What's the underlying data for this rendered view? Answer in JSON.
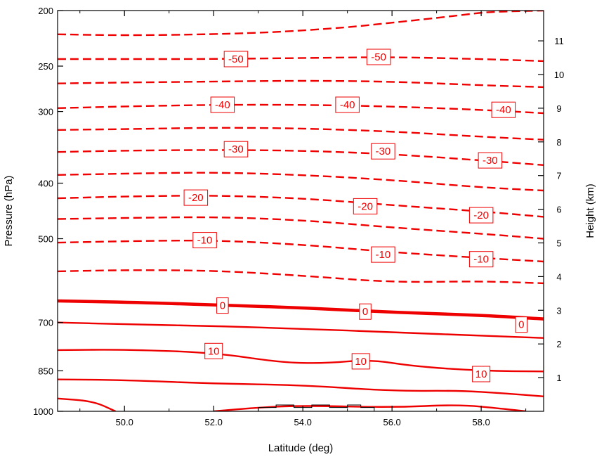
{
  "chart_data": {
    "type": "line",
    "subtype": "contour",
    "xlabel": "Latitude (deg)",
    "ylabel": "Pressure (hPa)",
    "ylabel_right": "Height (km)",
    "xlim": [
      48.5,
      59.4
    ],
    "ylim": [
      1000,
      200
    ],
    "y_scale": "log",
    "x_ticks": [
      "50.0",
      "52.0",
      "54.0",
      "56.0",
      "58.0"
    ],
    "x_tick_values": [
      50,
      52,
      54,
      56,
      58
    ],
    "y_ticks": [
      "200",
      "250",
      "300",
      "400",
      "500",
      "700",
      "850",
      "1000"
    ],
    "y_tick_values": [
      200,
      250,
      300,
      400,
      500,
      700,
      850,
      1000
    ],
    "y_ticks_right": [
      "1",
      "2",
      "3",
      "4",
      "5",
      "6",
      "7",
      "8",
      "9",
      "10",
      "11"
    ],
    "y_tick_right_values": [
      1,
      2,
      3,
      4,
      5,
      6,
      7,
      8,
      9,
      10,
      11
    ],
    "grid": false,
    "line_color": "#ee0000",
    "terrain_color": "#000000",
    "contours": [
      {
        "level": -55,
        "style": "dashed",
        "points": [
          [
            48.5,
            220
          ],
          [
            50,
            221
          ],
          [
            52,
            220
          ],
          [
            53.5,
            218
          ],
          [
            55,
            214
          ],
          [
            56,
            210
          ],
          [
            57,
            206
          ],
          [
            57.7,
            203
          ],
          [
            58.2,
            201
          ],
          [
            59.4,
            200
          ]
        ]
      },
      {
        "level": -50,
        "style": "dashed",
        "points": [
          [
            48.5,
            243
          ],
          [
            50,
            243
          ],
          [
            52,
            243
          ],
          [
            54,
            242
          ],
          [
            56,
            241
          ],
          [
            58,
            243
          ],
          [
            59.4,
            245
          ]
        ]
      },
      {
        "level": -45,
        "style": "dashed",
        "points": [
          [
            48.5,
            268
          ],
          [
            50,
            267
          ],
          [
            52,
            266
          ],
          [
            54,
            265
          ],
          [
            56,
            266
          ],
          [
            58,
            270
          ],
          [
            59.4,
            272
          ]
        ]
      },
      {
        "level": -40,
        "style": "dashed",
        "points": [
          [
            48.5,
            296
          ],
          [
            50,
            294
          ],
          [
            52,
            292
          ],
          [
            54,
            292
          ],
          [
            56,
            294
          ],
          [
            58,
            298
          ],
          [
            59.4,
            302
          ]
        ]
      },
      {
        "level": -35,
        "style": "dashed",
        "points": [
          [
            48.5,
            323
          ],
          [
            50,
            322
          ],
          [
            52,
            320
          ],
          [
            54,
            321
          ],
          [
            56,
            325
          ],
          [
            58,
            332
          ],
          [
            59.4,
            336
          ]
        ]
      },
      {
        "level": -30,
        "style": "dashed",
        "points": [
          [
            48.5,
            353
          ],
          [
            50,
            351
          ],
          [
            52,
            350
          ],
          [
            54,
            351
          ],
          [
            56,
            356
          ],
          [
            58,
            365
          ],
          [
            59.4,
            372
          ]
        ]
      },
      {
        "level": -25,
        "style": "dashed",
        "points": [
          [
            48.5,
            387
          ],
          [
            50,
            385
          ],
          [
            52,
            383
          ],
          [
            54,
            387
          ],
          [
            56,
            395
          ],
          [
            58,
            407
          ],
          [
            59.4,
            412
          ]
        ]
      },
      {
        "level": -20,
        "style": "dashed",
        "points": [
          [
            48.5,
            425
          ],
          [
            50,
            422
          ],
          [
            52,
            420
          ],
          [
            54,
            425
          ],
          [
            56,
            437
          ],
          [
            58,
            448
          ],
          [
            59.4,
            458
          ]
        ]
      },
      {
        "level": -15,
        "style": "dashed",
        "points": [
          [
            48.5,
            462
          ],
          [
            50,
            460
          ],
          [
            52,
            458
          ],
          [
            54,
            464
          ],
          [
            56,
            478
          ],
          [
            58,
            490
          ],
          [
            59.4,
            500
          ]
        ]
      },
      {
        "level": -10,
        "style": "dashed",
        "points": [
          [
            48.5,
            508
          ],
          [
            50,
            505
          ],
          [
            52,
            503
          ],
          [
            54,
            512
          ],
          [
            56,
            528
          ],
          [
            58,
            540
          ],
          [
            59.4,
            548
          ]
        ]
      },
      {
        "level": -5,
        "style": "dashed",
        "points": [
          [
            48.5,
            570
          ],
          [
            50,
            567
          ],
          [
            52,
            568
          ],
          [
            54,
            580
          ],
          [
            56,
            596
          ],
          [
            58,
            593
          ],
          [
            59.4,
            598
          ]
        ]
      },
      {
        "level": 0,
        "style": "thick",
        "points": [
          [
            48.5,
            642
          ],
          [
            50,
            645
          ],
          [
            52,
            652
          ],
          [
            54,
            660
          ],
          [
            56,
            672
          ],
          [
            58,
            680
          ],
          [
            59.4,
            690
          ]
        ]
      },
      {
        "level": 5,
        "style": "solid",
        "points": [
          [
            48.5,
            700
          ],
          [
            50,
            705
          ],
          [
            52,
            710
          ],
          [
            54,
            718
          ],
          [
            56,
            728
          ],
          [
            58,
            738
          ],
          [
            59.4,
            745
          ]
        ]
      },
      {
        "level": 10,
        "style": "solid",
        "points": [
          [
            48.5,
            782
          ],
          [
            50,
            780
          ],
          [
            52,
            790
          ],
          [
            53.5,
            822
          ],
          [
            54.5,
            825
          ],
          [
            55.5,
            812
          ],
          [
            56.5,
            835
          ],
          [
            58,
            850
          ],
          [
            59.4,
            852
          ]
        ]
      },
      {
        "level": 15,
        "style": "solid",
        "points": [
          [
            48.5,
            880
          ],
          [
            50,
            882
          ],
          [
            52,
            895
          ],
          [
            54,
            900
          ],
          [
            56,
            922
          ],
          [
            57.5,
            920
          ],
          [
            58.5,
            930
          ],
          [
            59.4,
            942
          ]
        ]
      },
      {
        "level": 20,
        "style": "solid",
        "points": [
          [
            48.5,
            950
          ],
          [
            49.3,
            960
          ],
          [
            49.8,
            1000
          ]
        ]
      },
      {
        "level": 20,
        "style": "solid",
        "points": [
          [
            52,
            1000
          ],
          [
            53,
            985
          ],
          [
            54,
            977
          ],
          [
            56,
            985
          ],
          [
            57.5,
            973
          ],
          [
            58.5,
            990
          ],
          [
            59,
            1000
          ]
        ]
      }
    ],
    "contour_labels": [
      {
        "text": "-50",
        "x": 52.5,
        "p": 243
      },
      {
        "text": "-50",
        "x": 55.7,
        "p": 241
      },
      {
        "text": "-40",
        "x": 52.2,
        "p": 292
      },
      {
        "text": "-40",
        "x": 55.0,
        "p": 292
      },
      {
        "text": "-40",
        "x": 58.5,
        "p": 298
      },
      {
        "text": "-30",
        "x": 52.5,
        "p": 349
      },
      {
        "text": "-30",
        "x": 55.8,
        "p": 352
      },
      {
        "text": "-30",
        "x": 58.2,
        "p": 365
      },
      {
        "text": "-20",
        "x": 51.6,
        "p": 424
      },
      {
        "text": "-20",
        "x": 55.4,
        "p": 439
      },
      {
        "text": "-20",
        "x": 58.0,
        "p": 455
      },
      {
        "text": "-10",
        "x": 51.8,
        "p": 503
      },
      {
        "text": "-10",
        "x": 55.8,
        "p": 533
      },
      {
        "text": "-10",
        "x": 58.0,
        "p": 543
      },
      {
        "text": "0",
        "x": 52.2,
        "p": 654
      },
      {
        "text": "0",
        "x": 55.4,
        "p": 670
      },
      {
        "text": "0",
        "x": 58.9,
        "p": 706
      },
      {
        "text": "10",
        "x": 52.0,
        "p": 785
      },
      {
        "text": "10",
        "x": 55.3,
        "p": 818
      },
      {
        "text": "10",
        "x": 58.0,
        "p": 861
      }
    ],
    "terrain": [
      [
        53.0,
        1000
      ],
      [
        53.0,
        985
      ],
      [
        53.4,
        985
      ],
      [
        53.4,
        975
      ],
      [
        53.8,
        975
      ],
      [
        53.8,
        985
      ],
      [
        54.2,
        985
      ],
      [
        54.2,
        975
      ],
      [
        54.6,
        975
      ],
      [
        54.6,
        985
      ],
      [
        55.0,
        985
      ],
      [
        55.0,
        975
      ],
      [
        55.3,
        975
      ],
      [
        55.3,
        985
      ],
      [
        55.6,
        985
      ],
      [
        55.6,
        1000
      ]
    ]
  }
}
